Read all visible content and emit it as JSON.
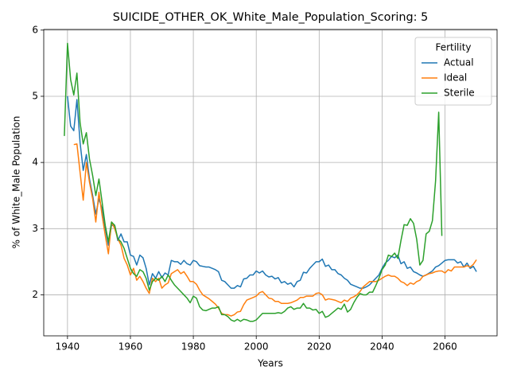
{
  "chart_data": {
    "type": "line",
    "title": "SUICIDE_OTHER_OK_White_Male_Population_Scoring: 5",
    "xlabel": "Years",
    "ylabel": "% of White_Male Population",
    "legend_title": "Fertility",
    "legend": "upper right",
    "grid": true,
    "xlim": [
      1932.45,
      2076.55
    ],
    "ylim": [
      1.38,
      6.01
    ],
    "xticks": [
      1940,
      1960,
      1980,
      2000,
      2020,
      2040,
      2060
    ],
    "yticks": [
      2,
      3,
      4,
      5,
      6
    ],
    "x": [
      1939,
      1940,
      1941,
      1942,
      1943,
      1944,
      1945,
      1946,
      1947,
      1948,
      1949,
      1950,
      1951,
      1952,
      1953,
      1954,
      1955,
      1956,
      1957,
      1958,
      1959,
      1960,
      1961,
      1962,
      1963,
      1964,
      1965,
      1966,
      1967,
      1968,
      1969,
      1970,
      1971,
      1972,
      1973,
      1974,
      1975,
      1976,
      1977,
      1978,
      1979,
      1980,
      1981,
      1982,
      1983,
      1984,
      1985,
      1986,
      1987,
      1988,
      1989,
      1990,
      1991,
      1992,
      1993,
      1994,
      1995,
      1996,
      1997,
      1998,
      1999,
      2000,
      2001,
      2002,
      2003,
      2004,
      2005,
      2006,
      2007,
      2008,
      2009,
      2010,
      2011,
      2012,
      2013,
      2014,
      2015,
      2016,
      2017,
      2018,
      2019,
      2020,
      2021,
      2022,
      2023,
      2024,
      2025,
      2026,
      2027,
      2028,
      2029,
      2030,
      2031,
      2032,
      2033,
      2034,
      2035,
      2036,
      2037,
      2038,
      2039,
      2040,
      2041,
      2042,
      2043,
      2044,
      2045,
      2046,
      2047,
      2048,
      2049,
      2050,
      2051,
      2052,
      2053,
      2054,
      2055,
      2056,
      2057,
      2058,
      2059,
      2060,
      2061,
      2062,
      2063,
      2064,
      2065,
      2066,
      2067,
      2068,
      2069,
      2070
    ],
    "series": [
      {
        "name": "Actual",
        "color": "#1f77b4",
        "values": [
          null,
          5.0,
          4.55,
          4.48,
          4.95,
          4.3,
          3.88,
          4.12,
          3.75,
          3.5,
          3.22,
          3.45,
          3.3,
          3.0,
          2.75,
          3.05,
          3.05,
          2.82,
          2.92,
          2.8,
          2.8,
          2.6,
          2.58,
          2.45,
          2.6,
          2.56,
          2.4,
          2.15,
          2.32,
          2.25,
          2.35,
          2.26,
          2.33,
          2.3,
          2.52,
          2.5,
          2.5,
          2.46,
          2.52,
          2.47,
          2.45,
          2.52,
          2.5,
          2.44,
          2.43,
          2.42,
          2.42,
          2.4,
          2.38,
          2.35,
          2.22,
          2.2,
          2.15,
          2.1,
          2.1,
          2.14,
          2.12,
          2.24,
          2.25,
          2.3,
          2.3,
          2.36,
          2.33,
          2.36,
          2.3,
          2.27,
          2.28,
          2.24,
          2.26,
          2.18,
          2.2,
          2.16,
          2.18,
          2.12,
          2.2,
          2.22,
          2.34,
          2.33,
          2.4,
          2.45,
          2.5,
          2.5,
          2.54,
          2.43,
          2.45,
          2.38,
          2.38,
          2.32,
          2.3,
          2.25,
          2.22,
          2.16,
          2.14,
          2.12,
          2.1,
          2.1,
          2.12,
          2.15,
          2.2,
          2.25,
          2.3,
          2.4,
          2.48,
          2.52,
          2.58,
          2.56,
          2.6,
          2.47,
          2.5,
          2.4,
          2.42,
          2.35,
          2.33,
          2.3,
          2.28,
          2.3,
          2.33,
          2.36,
          2.42,
          2.44,
          2.48,
          2.52,
          2.53,
          2.53,
          2.53,
          2.48,
          2.5,
          2.42,
          2.48,
          2.4,
          2.43,
          2.35
        ]
      },
      {
        "name": "Ideal",
        "color": "#ff7f0e",
        "values": [
          null,
          null,
          null,
          4.27,
          4.28,
          3.85,
          3.43,
          4.0,
          3.7,
          3.45,
          3.1,
          3.55,
          3.2,
          2.9,
          2.62,
          3.1,
          3.0,
          2.85,
          2.75,
          2.55,
          2.45,
          2.3,
          2.4,
          2.22,
          2.28,
          2.2,
          2.1,
          2.02,
          2.25,
          2.2,
          2.25,
          2.1,
          2.15,
          2.18,
          2.32,
          2.35,
          2.38,
          2.32,
          2.35,
          2.28,
          2.2,
          2.2,
          2.16,
          2.07,
          2.0,
          1.97,
          1.94,
          1.9,
          1.86,
          1.8,
          1.72,
          1.7,
          1.7,
          1.68,
          1.7,
          1.74,
          1.75,
          1.85,
          1.92,
          1.94,
          1.96,
          1.98,
          2.03,
          2.05,
          2.0,
          1.95,
          1.94,
          1.9,
          1.9,
          1.87,
          1.87,
          1.87,
          1.88,
          1.9,
          1.92,
          1.96,
          1.96,
          1.98,
          1.98,
          1.98,
          2.02,
          2.03,
          2.0,
          1.92,
          1.94,
          1.93,
          1.92,
          1.9,
          1.88,
          1.92,
          1.9,
          1.95,
          1.97,
          2.0,
          2.05,
          2.12,
          2.16,
          2.2,
          2.2,
          2.2,
          2.22,
          2.25,
          2.28,
          2.3,
          2.28,
          2.28,
          2.25,
          2.2,
          2.18,
          2.14,
          2.18,
          2.16,
          2.2,
          2.22,
          2.28,
          2.3,
          2.32,
          2.33,
          2.35,
          2.36,
          2.36,
          2.33,
          2.38,
          2.36,
          2.42,
          2.42,
          2.42,
          2.42,
          2.44,
          2.42,
          2.46,
          2.53
        ]
      },
      {
        "name": "Sterile",
        "color": "#2ca02c",
        "values": [
          4.4,
          5.8,
          5.25,
          5.02,
          5.35,
          4.6,
          4.28,
          4.45,
          4.05,
          3.8,
          3.5,
          3.75,
          3.4,
          3.05,
          2.8,
          3.1,
          3.05,
          2.85,
          2.8,
          2.7,
          2.55,
          2.4,
          2.32,
          2.28,
          2.38,
          2.35,
          2.25,
          2.07,
          2.2,
          2.25,
          2.22,
          2.28,
          2.2,
          2.3,
          2.22,
          2.15,
          2.1,
          2.05,
          2.0,
          1.95,
          1.88,
          1.98,
          1.95,
          1.82,
          1.77,
          1.76,
          1.78,
          1.8,
          1.8,
          1.82,
          1.7,
          1.7,
          1.67,
          1.62,
          1.6,
          1.63,
          1.6,
          1.63,
          1.62,
          1.6,
          1.6,
          1.62,
          1.67,
          1.72,
          1.72,
          1.72,
          1.72,
          1.72,
          1.73,
          1.72,
          1.75,
          1.8,
          1.82,
          1.78,
          1.8,
          1.8,
          1.87,
          1.8,
          1.8,
          1.77,
          1.78,
          1.72,
          1.75,
          1.66,
          1.68,
          1.72,
          1.76,
          1.8,
          1.78,
          1.86,
          1.74,
          1.78,
          1.88,
          1.96,
          2.02,
          2.0,
          2.0,
          2.04,
          2.04,
          2.14,
          2.25,
          2.38,
          2.45,
          2.6,
          2.58,
          2.63,
          2.55,
          2.82,
          3.06,
          3.05,
          3.15,
          3.08,
          2.84,
          2.45,
          2.52,
          2.92,
          2.96,
          3.12,
          3.72,
          4.76,
          2.89,
          null,
          null,
          null,
          null,
          null,
          null,
          null,
          null,
          null,
          null,
          null
        ]
      }
    ]
  }
}
